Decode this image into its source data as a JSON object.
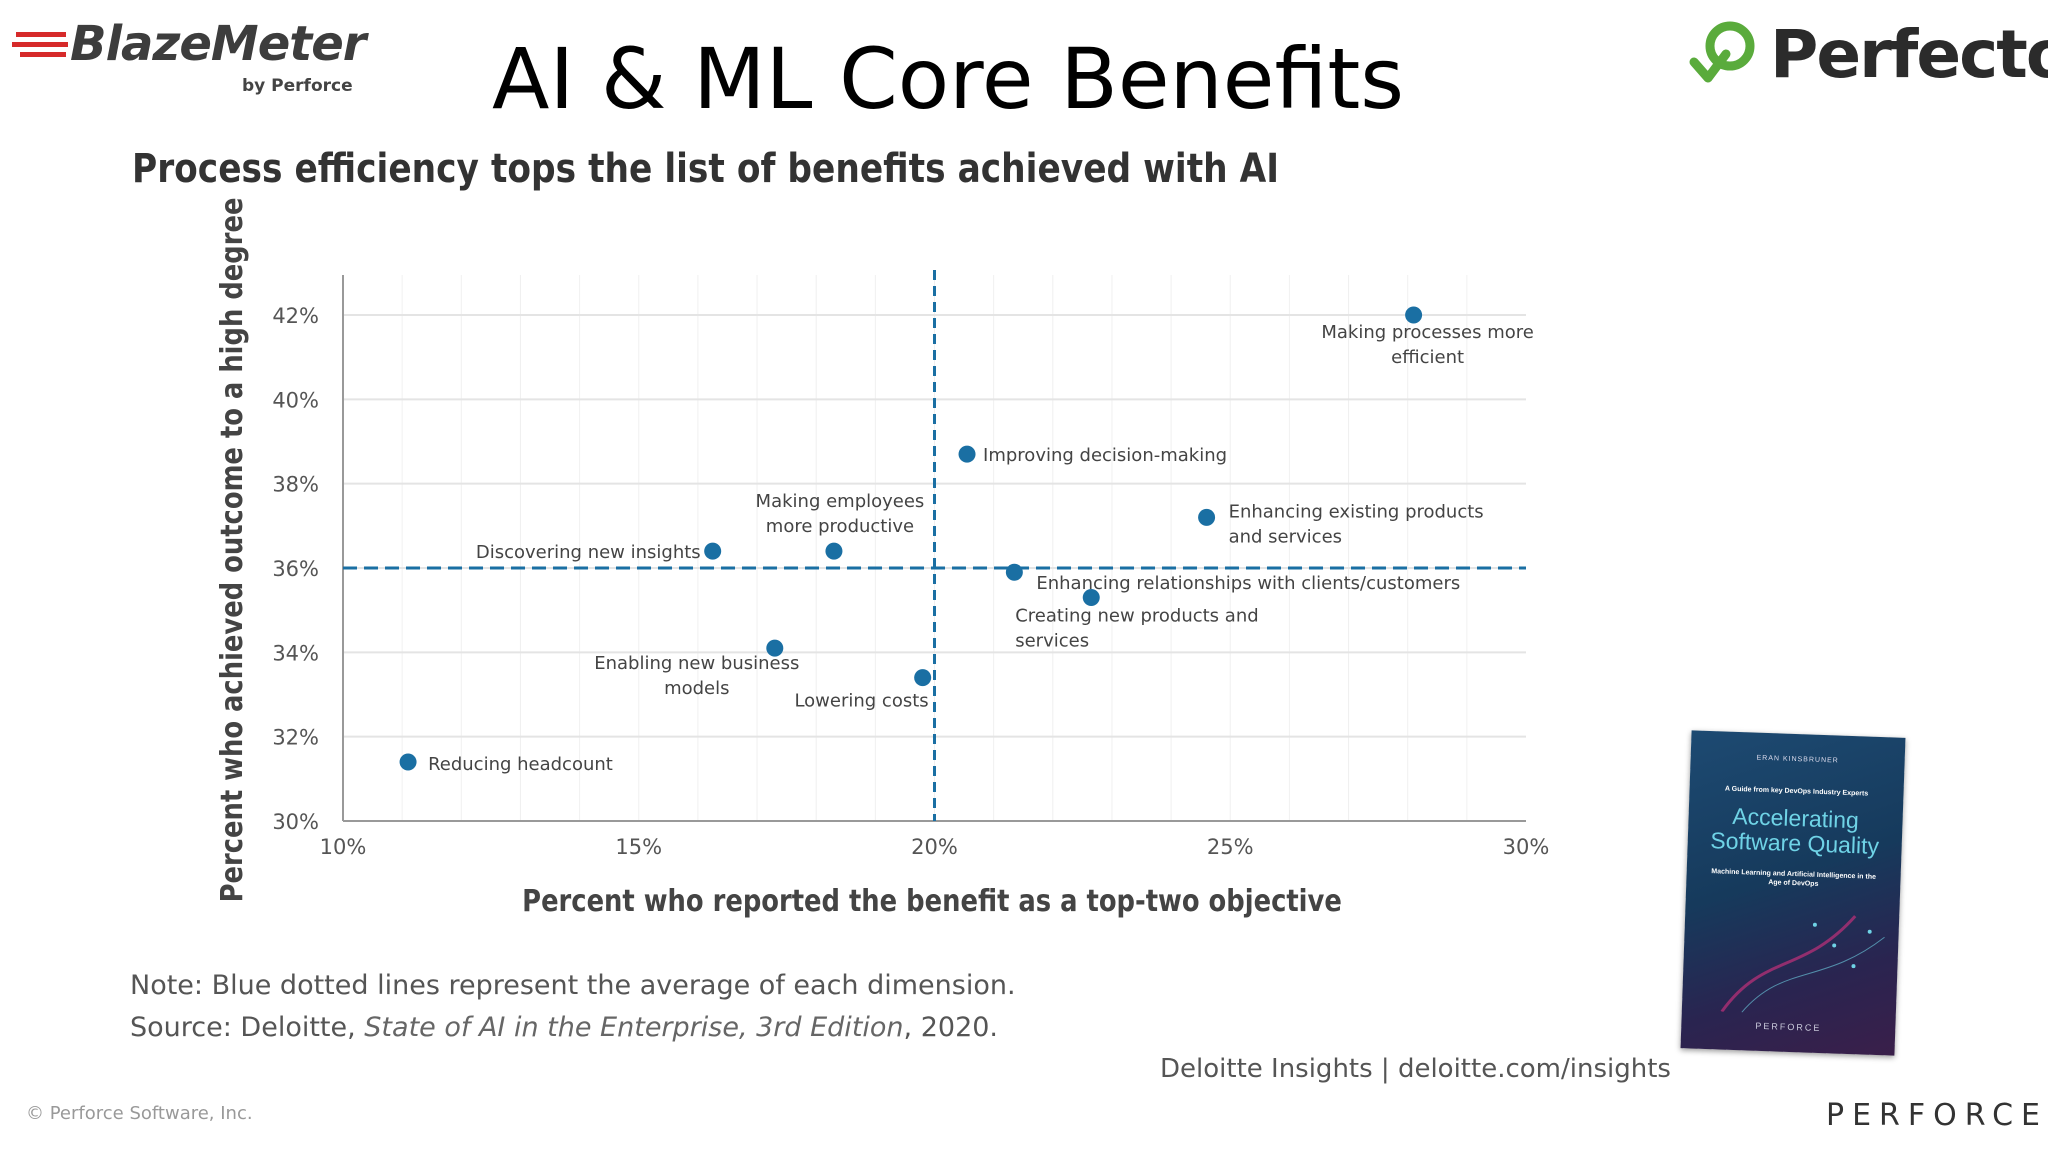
{
  "header": {
    "title": "AI & ML Core Benefits",
    "left_logo": {
      "name": "BlazeMeter",
      "sub": "by Perforce"
    },
    "right_logo": {
      "name": "Perfecto"
    }
  },
  "chart_data": {
    "type": "scatter",
    "title": "Process efficiency tops the list of benefits achieved with AI",
    "xlabel": "Percent who reported the benefit as a top-two objective",
    "ylabel": "Percent who achieved outcome to a high degree",
    "xlim": [
      10,
      30
    ],
    "ylim": [
      30,
      42
    ],
    "x_ticks": [
      "10%",
      "15%",
      "20%",
      "25%",
      "30%"
    ],
    "y_ticks": [
      "30%",
      "32%",
      "34%",
      "36%",
      "38%",
      "40%",
      "42%"
    ],
    "grid": true,
    "avg_x": 20,
    "avg_y": 36,
    "points": [
      {
        "label": [
          "Making processes more",
          "efficient"
        ],
        "x": 28.1,
        "y": 42.0
      },
      {
        "label": [
          "Improving decision-making"
        ],
        "x": 20.55,
        "y": 38.7
      },
      {
        "label": [
          "Enhancing existing products",
          "and services"
        ],
        "x": 24.6,
        "y": 37.2
      },
      {
        "label": [
          "Making employees",
          "more productive"
        ],
        "x": 18.3,
        "y": 36.4
      },
      {
        "label": [
          "Discovering new insights"
        ],
        "x": 16.25,
        "y": 36.4
      },
      {
        "label": [
          "Enhancing relationships with clients/customers"
        ],
        "x": 21.35,
        "y": 35.9
      },
      {
        "label": [
          "Creating new products and",
          "services"
        ],
        "x": 22.65,
        "y": 35.3
      },
      {
        "label": [
          "Enabling new business",
          "models"
        ],
        "x": 17.3,
        "y": 34.1
      },
      {
        "label": [
          "Lowering costs"
        ],
        "x": 19.8,
        "y": 33.4
      },
      {
        "label": [
          "Reducing headcount"
        ],
        "x": 11.1,
        "y": 31.4
      }
    ],
    "colors": {
      "point": "#1a6fa3",
      "avg_line": "#1a6fa3",
      "grid": "#e4e4e4",
      "axis": "#999999"
    }
  },
  "notes": {
    "note": "Note: Blue dotted lines represent the average of each dimension.",
    "source_prefix": "Source: Deloitte, ",
    "source_title": "State of AI in the Enterprise, 3rd Edition",
    "source_suffix": ", 2020."
  },
  "attribution": "Deloitte Insights | deloitte.com/insights",
  "footer": {
    "copyright": "© Perforce Software, Inc.",
    "brand": "PERFORCE"
  },
  "book": {
    "author": "ERAN KINSBRUNER",
    "guide": "A Guide from key DevOps Industry Experts",
    "title_line1": "Accelerating",
    "title_line2": "Software Quality",
    "tagline": "Machine Learning and Artificial Intelligence in the Age of DevOps",
    "brand": "PERFORCE"
  }
}
